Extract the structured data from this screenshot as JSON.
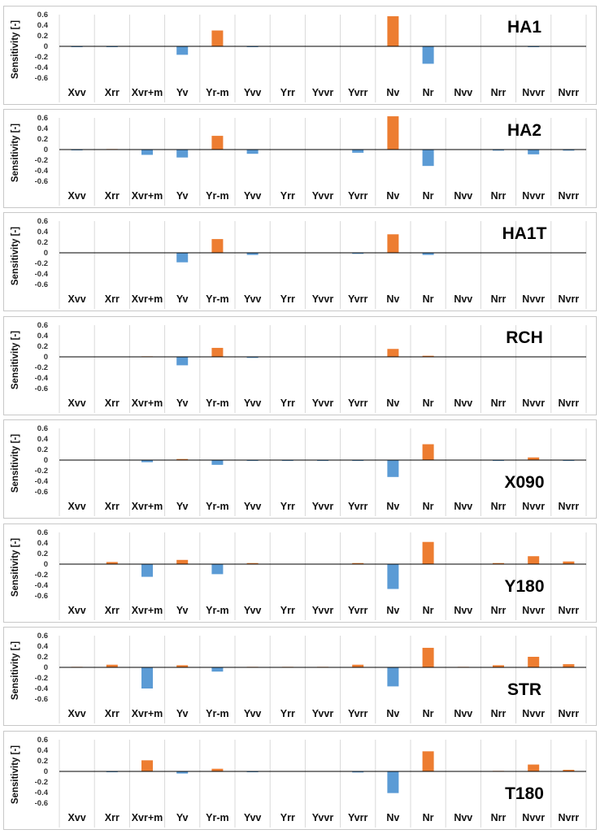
{
  "colors": {
    "positive": "#ED7D31",
    "negative": "#5B9BD5",
    "grid": "#d9d9d9",
    "axis": "#000000"
  },
  "chart_data": [
    {
      "type": "bar",
      "title": "HA1",
      "title_position": "top-right",
      "ylabel": "Sensitivity [-]",
      "ylim": [
        -0.6,
        0.6
      ],
      "yticks": [
        "0.6",
        "0.4",
        "0.2",
        "0",
        "-0.2",
        "-0.4",
        "-0.6"
      ],
      "grid": "vertical",
      "categories": [
        "Xvv",
        "Xrr",
        "Xvr+m",
        "Yv",
        "Yr-m",
        "Yvv",
        "Yrr",
        "Yvvr",
        "Yvrr",
        "Nv",
        "Nr",
        "Nvv",
        "Nrr",
        "Nvvr",
        "Nvrr"
      ],
      "values": [
        -0.01,
        -0.01,
        0,
        -0.16,
        0.3,
        -0.01,
        0,
        0,
        0,
        0.57,
        -0.33,
        0,
        0,
        -0.01,
        0
      ]
    },
    {
      "type": "bar",
      "title": "HA2",
      "title_position": "top-right",
      "ylabel": "Sensitivity [-]",
      "ylim": [
        -0.6,
        0.6
      ],
      "yticks": [
        "0.6",
        "0.4",
        "0.2",
        "0",
        "-0.2",
        "-0.4",
        "-0.6"
      ],
      "grid": "vertical",
      "categories": [
        "Xvv",
        "Xrr",
        "Xvr+m",
        "Yv",
        "Yr-m",
        "Yvv",
        "Yrr",
        "Yvvr",
        "Yvrr",
        "Nv",
        "Nr",
        "Nvv",
        "Nrr",
        "Nvvr",
        "Nvrr"
      ],
      "values": [
        -0.01,
        0.01,
        -0.1,
        -0.15,
        0.26,
        -0.08,
        0,
        0,
        -0.06,
        0.63,
        -0.31,
        0,
        -0.02,
        -0.09,
        -0.02
      ]
    },
    {
      "type": "bar",
      "title": "HA1T",
      "title_position": "top-right",
      "ylabel": "Sensitivity [-]",
      "ylim": [
        -0.6,
        0.6
      ],
      "yticks": [
        "0.6",
        "0.4",
        "0.2",
        "0",
        "-0.2",
        "-0.4",
        "-0.6"
      ],
      "grid": "vertical",
      "categories": [
        "Xvv",
        "Xrr",
        "Xvr+m",
        "Yv",
        "Yr-m",
        "Yvv",
        "Yrr",
        "Yvvr",
        "Yvrr",
        "Nv",
        "Nr",
        "Nvv",
        "Nrr",
        "Nvvr",
        "Nvrr"
      ],
      "values": [
        0,
        0,
        0,
        -0.18,
        0.26,
        -0.04,
        0,
        0,
        -0.02,
        0.35,
        -0.04,
        0,
        0,
        0,
        0
      ]
    },
    {
      "type": "bar",
      "title": "RCH",
      "title_position": "top-right",
      "ylabel": "Sensitivity [-]",
      "ylim": [
        -0.6,
        0.6
      ],
      "yticks": [
        "0.6",
        "0.4",
        "0.2",
        "0",
        "-0.2",
        "-0.4",
        "-0.6"
      ],
      "grid": "vertical",
      "categories": [
        "Xvv",
        "Xrr",
        "Xvr+m",
        "Yv",
        "Yr-m",
        "Yvv",
        "Yrr",
        "Yvvr",
        "Yvrr",
        "Nv",
        "Nr",
        "Nvv",
        "Nrr",
        "Nvvr",
        "Nvrr"
      ],
      "values": [
        0,
        0,
        0.01,
        -0.16,
        0.17,
        -0.02,
        0,
        0,
        0,
        0.15,
        0.02,
        0,
        0,
        0,
        0
      ]
    },
    {
      "type": "bar",
      "title": "X090",
      "title_position": "bottom-right",
      "ylabel": "Sensitivity [-]",
      "ylim": [
        -0.6,
        0.6
      ],
      "yticks": [
        "0.6",
        "0.4",
        "0.2",
        "0",
        "-0.2",
        "-0.4",
        "-0.6"
      ],
      "grid": "vertical",
      "categories": [
        "Xvv",
        "Xrr",
        "Xvr+m",
        "Yv",
        "Yr-m",
        "Yvv",
        "Yrr",
        "Yvvr",
        "Yvrr",
        "Nv",
        "Nr",
        "Nvv",
        "Nrr",
        "Nvvr",
        "Nvrr"
      ],
      "values": [
        0,
        0,
        -0.04,
        0.02,
        -0.09,
        -0.01,
        -0.01,
        -0.01,
        -0.01,
        -0.32,
        0.3,
        0,
        -0.01,
        0.05,
        -0.01
      ]
    },
    {
      "type": "bar",
      "title": "Y180",
      "title_position": "bottom-right",
      "ylabel": "Sensitivity [-]",
      "ylim": [
        -0.6,
        0.6
      ],
      "yticks": [
        "0.6",
        "0.4",
        "0.2",
        "0",
        "-0.2",
        "-0.4",
        "-0.6"
      ],
      "grid": "vertical",
      "categories": [
        "Xvv",
        "Xrr",
        "Xvr+m",
        "Yv",
        "Yr-m",
        "Yvv",
        "Yrr",
        "Yvvr",
        "Yvrr",
        "Nv",
        "Nr",
        "Nvv",
        "Nrr",
        "Nvvr",
        "Nvrr"
      ],
      "values": [
        0,
        0.04,
        -0.24,
        0.08,
        -0.19,
        0.02,
        0,
        0,
        0.02,
        -0.47,
        0.42,
        0,
        0.02,
        0.15,
        0.05
      ]
    },
    {
      "type": "bar",
      "title": "STR",
      "title_position": "bottom-right",
      "ylabel": "Sensitivity [-]",
      "ylim": [
        -0.6,
        0.6
      ],
      "yticks": [
        "0.6",
        "0.4",
        "0.2",
        "0",
        "-0.2",
        "-0.4",
        "-0.6"
      ],
      "grid": "vertical",
      "categories": [
        "Xvv",
        "Xrr",
        "Xvr+m",
        "Yv",
        "Yr-m",
        "Yvv",
        "Yrr",
        "Yvvr",
        "Yvrr",
        "Nv",
        "Nr",
        "Nvv",
        "Nrr",
        "Nvvr",
        "Nvrr"
      ],
      "values": [
        0.01,
        0.05,
        -0.4,
        0.04,
        -0.08,
        0.01,
        0.01,
        0.01,
        0.05,
        -0.36,
        0.37,
        0.01,
        0.04,
        0.2,
        0.06
      ]
    },
    {
      "type": "bar",
      "title": "T180",
      "title_position": "bottom-right",
      "ylabel": "Sensitivity [-]",
      "ylim": [
        -0.6,
        0.6
      ],
      "yticks": [
        "0.6",
        "0.4",
        "0.2",
        "0",
        "-0.2",
        "-0.4",
        "-0.6"
      ],
      "grid": "vertical",
      "categories": [
        "Xvv",
        "Xrr",
        "Xvr+m",
        "Yv",
        "Yr-m",
        "Yvv",
        "Yrr",
        "Yvvr",
        "Yvrr",
        "Nv",
        "Nr",
        "Nvv",
        "Nrr",
        "Nvvr",
        "Nvrr"
      ],
      "values": [
        0,
        -0.01,
        0.21,
        -0.04,
        0.05,
        -0.01,
        0,
        0,
        -0.02,
        -0.41,
        0.38,
        0,
        0.01,
        0.13,
        0.03
      ]
    }
  ]
}
